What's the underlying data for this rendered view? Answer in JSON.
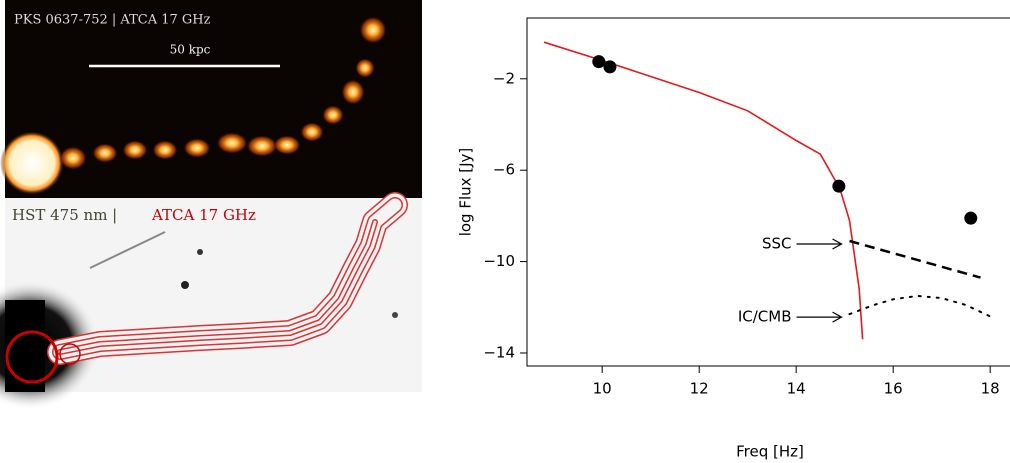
{
  "images": {
    "radio": {
      "label": "PKS 0637-752  |  ATCA 17 GHz",
      "scale_label": "50 kpc"
    },
    "optical": {
      "label_left": "HST 475 nm |",
      "label_right": "ATCA 17 GHz"
    }
  },
  "chart_data": {
    "type": "scatter",
    "x_label": "Freq [Hz]",
    "y_label": "log Flux [Jy]",
    "xlim": [
      8.45,
      18.45
    ],
    "ylim": [
      -14.57,
      0.66
    ],
    "xticks": [
      10,
      12,
      14,
      16,
      18
    ],
    "yticks": [
      {
        "value": -2,
        "label": "−2"
      },
      {
        "value": -6,
        "label": "−6"
      },
      {
        "value": -10,
        "label": "−10"
      },
      {
        "value": -14,
        "label": "−14"
      }
    ],
    "points": {
      "color": "#000000",
      "x": [
        9.93,
        10.16,
        14.88,
        17.6
      ],
      "y": [
        -1.25,
        -1.48,
        -6.7,
        -8.1
      ]
    },
    "curve": {
      "color": "#e41a1c",
      "x": [
        8.8,
        10,
        11,
        12,
        13,
        14,
        14.5,
        14.9,
        15.1,
        15.3,
        15.37
      ],
      "y": [
        -0.4,
        -1.2,
        -1.9,
        -2.6,
        -3.4,
        -4.7,
        -5.3,
        -6.8,
        -8.2,
        -11.2,
        -13.4
      ]
    },
    "ssc": {
      "color": "#000000",
      "label": "SSC",
      "x": [
        15.1,
        17.8
      ],
      "y": [
        -9.1,
        -10.7
      ]
    },
    "ic_cmb": {
      "color": "#000000",
      "label": "IC/CMB",
      "x": [
        15.1,
        15.6,
        16,
        16.5,
        17,
        17.5,
        18
      ],
      "y": [
        -12.3,
        -11.9,
        -11.65,
        -11.5,
        -11.6,
        -11.9,
        -12.4
      ]
    }
  }
}
